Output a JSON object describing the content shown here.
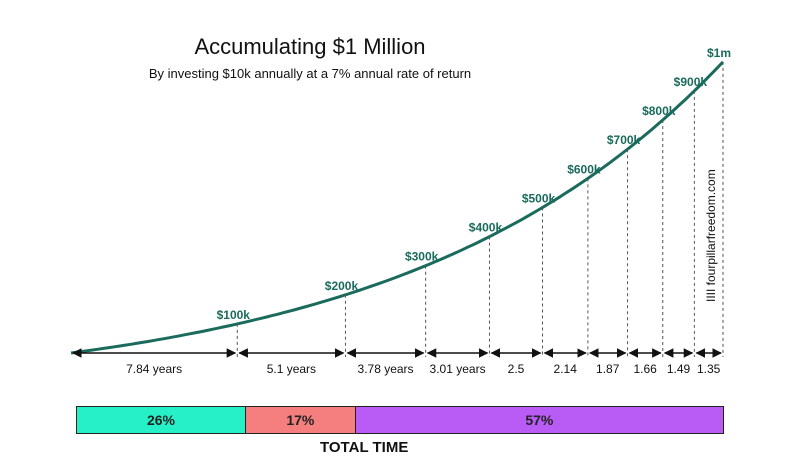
{
  "chart_data": {
    "type": "line",
    "title": "Accumulating $1 Million",
    "subtitle": "By investing $10k annually at a 7% annual rate of return",
    "watermark": "IIII fourpillarfreedom.com",
    "line_color": "#1a6b5c",
    "label_color": "#1a6b5c",
    "milestones": [
      {
        "label": "$100k",
        "value": 100000,
        "years": 7.84
      },
      {
        "label": "$200k",
        "value": 200000,
        "years": 12.94
      },
      {
        "label": "$300k",
        "value": 300000,
        "years": 16.72
      },
      {
        "label": "$400k",
        "value": 400000,
        "years": 19.73
      },
      {
        "label": "$500k",
        "value": 500000,
        "years": 22.23
      },
      {
        "label": "$600k",
        "value": 600000,
        "years": 24.37
      },
      {
        "label": "$700k",
        "value": 700000,
        "years": 26.24
      },
      {
        "label": "$800k",
        "value": 800000,
        "years": 27.9
      },
      {
        "label": "$900k",
        "value": 900000,
        "years": 29.39
      },
      {
        "label": "$1m",
        "value": 1000000,
        "years": 30.74
      }
    ],
    "intervals": [
      "7.84 years",
      "5.1 years",
      "3.78 years",
      "3.01 years",
      "2.5",
      "2.14",
      "1.87",
      "1.66",
      "1.49",
      "1.35"
    ],
    "time_split": {
      "caption": "TOTAL TIME",
      "segments": [
        {
          "label": "26%",
          "value": 26,
          "color": "#26f0c8"
        },
        {
          "label": "17%",
          "value": 17,
          "color": "#f57f7f"
        },
        {
          "label": "57%",
          "value": 57,
          "color": "#b85cf5"
        }
      ]
    }
  }
}
